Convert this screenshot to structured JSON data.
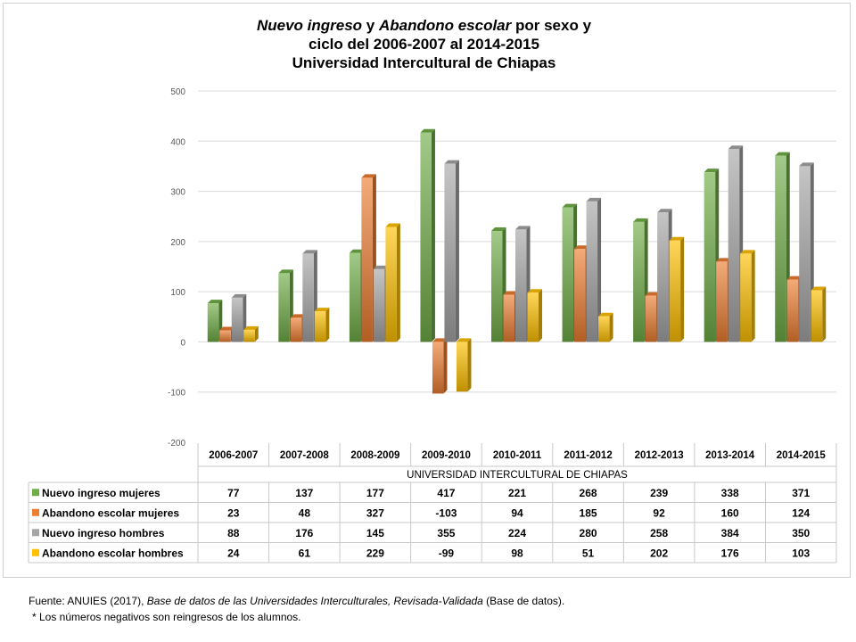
{
  "title": {
    "line1_italic_a": "Nuevo ingreso",
    "line1_mid": " y ",
    "line1_italic_b": "Abandono escolar",
    "line1_end": " por sexo y",
    "line2": "ciclo del  2006-2007 al 2014-2015",
    "line3": "Universidad Intercultural de Chiapas"
  },
  "chart_data": {
    "type": "bar",
    "title": "Nuevo ingreso y Abandono escolar por sexo y ciclo del 2006-2007 al 2014-2015 Universidad Intercultural de Chiapas",
    "categories": [
      "2006-2007",
      "2007-2008",
      "2008-2009",
      "2009-2010",
      "2010-2011",
      "2011-2012",
      "2012-2013",
      "2013-2014",
      "2014-2015"
    ],
    "category_group_label": "UNIVERSIDAD INTERCULTURAL DE CHIAPAS",
    "series": [
      {
        "name": "Nuevo ingreso mujeres",
        "color": "#70ad47",
        "values": [
          77,
          137,
          177,
          417,
          221,
          268,
          239,
          338,
          371
        ]
      },
      {
        "name": "Abandono escolar mujeres",
        "color": "#ed7d31",
        "values": [
          23,
          48,
          327,
          -103,
          94,
          185,
          92,
          160,
          124
        ]
      },
      {
        "name": "Nuevo ingreso hombres",
        "color": "#a5a5a5",
        "values": [
          88,
          176,
          145,
          355,
          224,
          280,
          258,
          384,
          350
        ]
      },
      {
        "name": "Abandono escolar hombres",
        "color": "#ffc000",
        "values": [
          24,
          61,
          229,
          -99,
          98,
          51,
          202,
          176,
          103
        ]
      }
    ],
    "ylim": [
      -200,
      500
    ],
    "yticks": [
      -200,
      -100,
      0,
      100,
      200,
      300,
      400,
      500
    ],
    "grid": true,
    "legend": "data-table"
  },
  "footer": {
    "source_prefix": "Fuente: ANUIES (2017),",
    "source_italic": " Base de datos de las Universidades  Interculturales, Revisada-Validada",
    "source_suffix": "  (Base de datos).",
    "note": "* Los números  negativos  son reingresos de los alumnos."
  }
}
